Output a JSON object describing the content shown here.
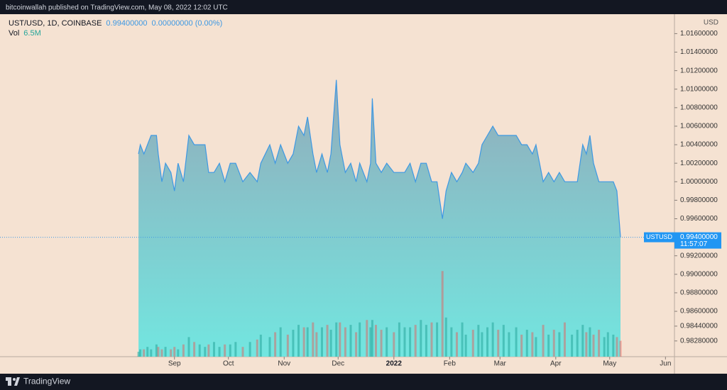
{
  "header": {
    "publisher": "bitcoinwallah published on TradingView.com, May 08, 2022 12:02 UTC"
  },
  "footer": {
    "brand": "TradingView"
  },
  "chart_data": {
    "type": "area",
    "change": "0.00000000 (0.00%)",
    "last_price": {
      "value": 0.994,
      "label": "0.99400000"
    },
    "price_tag": "USTUSD",
    "countdown": "11:57:07",
    "price_axis_unit": "USD",
    "vol_legend": {
      "label": "Vol",
      "value": "6.5M"
    },
    "background": "#f5e2d2",
    "area_top_color": "#93abba",
    "area_bottom_color": "#72e6e0",
    "x": [
      "2021-08-12",
      "2021-08-13",
      "2021-08-15",
      "2021-08-17",
      "2021-08-19",
      "2021-08-22",
      "2021-08-23",
      "2021-08-25",
      "2021-08-27",
      "2021-08-30",
      "2021-09-01",
      "2021-09-03",
      "2021-09-06",
      "2021-09-09",
      "2021-09-12",
      "2021-09-15",
      "2021-09-18",
      "2021-09-20",
      "2021-09-23",
      "2021-09-26",
      "2021-09-29",
      "2021-10-02",
      "2021-10-05",
      "2021-10-09",
      "2021-10-13",
      "2021-10-17",
      "2021-10-19",
      "2021-10-24",
      "2021-10-27",
      "2021-10-30",
      "2021-11-03",
      "2021-11-06",
      "2021-11-09",
      "2021-11-12",
      "2021-11-14",
      "2021-11-17",
      "2021-11-19",
      "2021-11-22",
      "2021-11-25",
      "2021-11-27",
      "2021-11-30",
      "2021-12-02",
      "2021-12-05",
      "2021-12-08",
      "2021-12-11",
      "2021-12-13",
      "2021-12-17",
      "2021-12-19",
      "2021-12-20",
      "2021-12-22",
      "2021-12-25",
      "2021-12-28",
      "2022-01-01",
      "2022-01-04",
      "2022-01-07",
      "2022-01-10",
      "2022-01-13",
      "2022-01-16",
      "2022-01-19",
      "2022-01-22",
      "2022-01-25",
      "2022-01-28",
      "2022-01-30",
      "2022-02-02",
      "2022-02-05",
      "2022-02-08",
      "2022-02-10",
      "2022-02-14",
      "2022-02-17",
      "2022-02-19",
      "2022-02-22",
      "2022-02-25",
      "2022-02-28",
      "2022-03-03",
      "2022-03-06",
      "2022-03-10",
      "2022-03-13",
      "2022-03-16",
      "2022-03-19",
      "2022-03-21",
      "2022-03-25",
      "2022-03-28",
      "2022-03-31",
      "2022-04-03",
      "2022-04-06",
      "2022-04-10",
      "2022-04-13",
      "2022-04-16",
      "2022-04-18",
      "2022-04-20",
      "2022-04-22",
      "2022-04-25",
      "2022-04-28",
      "2022-04-30",
      "2022-05-03",
      "2022-05-05",
      "2022-05-07"
    ],
    "series": [
      {
        "name": "UST/USD, 1D, COINBASE",
        "color": "#3d98e3",
        "values": [
          1.003,
          1.004,
          1.003,
          1.004,
          1.005,
          1.005,
          1.003,
          1.0,
          1.002,
          1.001,
          0.999,
          1.002,
          1.0,
          1.005,
          1.004,
          1.004,
          1.004,
          1.001,
          1.001,
          1.002,
          1.0,
          1.002,
          1.002,
          1.0,
          1.001,
          1.0,
          1.002,
          1.004,
          1.002,
          1.004,
          1.002,
          1.003,
          1.006,
          1.005,
          1.007,
          1.003,
          1.001,
          1.003,
          1.001,
          1.003,
          1.011,
          1.004,
          1.001,
          1.002,
          1.0,
          1.002,
          1.0,
          1.002,
          1.009,
          1.002,
          1.001,
          1.002,
          1.001,
          1.001,
          1.001,
          1.002,
          1.0,
          1.002,
          1.002,
          1.0,
          1.0,
          0.996,
          0.999,
          1.001,
          1.0,
          1.001,
          1.002,
          1.001,
          1.002,
          1.004,
          1.005,
          1.006,
          1.005,
          1.005,
          1.005,
          1.005,
          1.004,
          1.004,
          1.003,
          1.004,
          1.0,
          1.001,
          1.0,
          1.001,
          1.0,
          1.0,
          1.0,
          1.004,
          1.003,
          1.005,
          1.002,
          1.0,
          1.0,
          1.0,
          1.0,
          0.999,
          0.994
        ]
      },
      {
        "name": "Vol",
        "axis": "vol",
        "up_color": "rgba(38,166,154,0.55)",
        "down_color": "rgba(239,83,80,0.45)",
        "values": [
          2,
          3,
          3,
          4,
          3,
          5,
          4,
          3,
          4,
          3,
          4,
          3,
          5,
          8,
          6,
          5,
          4,
          5,
          6,
          4,
          5,
          5,
          6,
          4,
          6,
          7,
          9,
          8,
          10,
          12,
          9,
          11,
          13,
          12,
          12,
          14,
          10,
          12,
          13,
          11,
          14,
          14,
          12,
          13,
          10,
          14,
          15,
          12,
          15,
          13,
          11,
          12,
          10,
          14,
          12,
          12,
          13,
          15,
          13,
          14,
          14,
          35,
          16,
          12,
          10,
          14,
          9,
          11,
          13,
          10,
          12,
          14,
          11,
          13,
          10,
          12,
          9,
          11,
          10,
          8,
          13,
          9,
          11,
          10,
          14,
          9,
          11,
          13,
          10,
          12,
          9,
          11,
          8,
          10,
          9,
          8,
          6.5
        ]
      }
    ],
    "vol_ylim": [
      0,
      140
    ],
    "xlim": [
      "2021-05-27",
      "2022-06-06"
    ],
    "xticks": [
      {
        "value": "2021-09-01",
        "label": "Sep"
      },
      {
        "value": "2021-10-01",
        "label": "Oct"
      },
      {
        "value": "2021-11-01",
        "label": "Nov"
      },
      {
        "value": "2021-12-01",
        "label": "Dec"
      },
      {
        "value": "2022-01-01",
        "label": "2022"
      },
      {
        "value": "2022-02-01",
        "label": "Feb"
      },
      {
        "value": "2022-03-01",
        "label": "Mar"
      },
      {
        "value": "2022-04-01",
        "label": "Apr"
      },
      {
        "value": "2022-05-01",
        "label": "May"
      },
      {
        "value": "2022-06-01",
        "label": "Jun"
      }
    ],
    "ylim": [
      0.9811,
      1.0181
    ],
    "yticks": [
      {
        "value": 1.016,
        "label": "1.01600000"
      },
      {
        "value": 1.014,
        "label": "1.01400000"
      },
      {
        "value": 1.012,
        "label": "1.01200000"
      },
      {
        "value": 1.01,
        "label": "1.01000000"
      },
      {
        "value": 1.008,
        "label": "1.00800000"
      },
      {
        "value": 1.006,
        "label": "1.00600000"
      },
      {
        "value": 1.004,
        "label": "1.00400000"
      },
      {
        "value": 1.002,
        "label": "1.00200000"
      },
      {
        "value": 1,
        "label": "1.00000000"
      },
      {
        "value": 0.998,
        "label": "0.99800000"
      },
      {
        "value": 0.996,
        "label": "0.99600000"
      },
      {
        "value": 0.992,
        "label": "0.99200000"
      },
      {
        "value": 0.99,
        "label": "0.99000000"
      },
      {
        "value": 0.988,
        "label": "0.98800000"
      },
      {
        "value": 0.986,
        "label": "0.98600000"
      },
      {
        "value": 0.9844,
        "label": "0.98440000"
      },
      {
        "value": 0.9828,
        "label": "0.98280000"
      }
    ]
  }
}
